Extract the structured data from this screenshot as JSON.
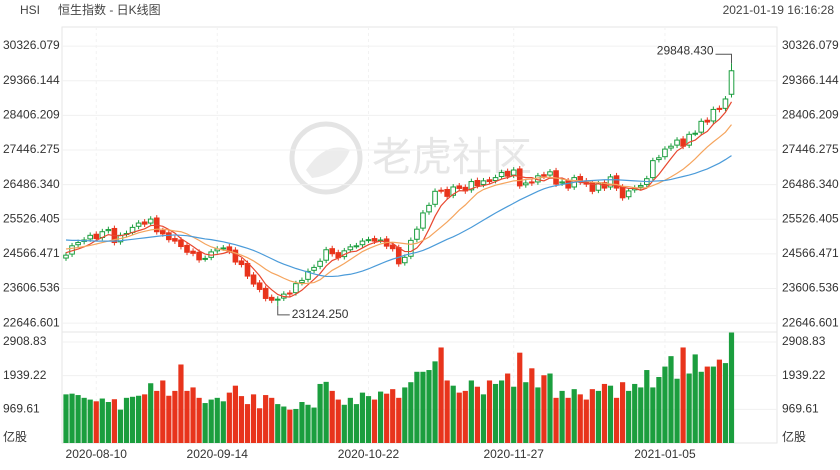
{
  "chart_data": {
    "type": "candlestick",
    "symbol": "HSI",
    "title": "恒生指数 - 日K线图",
    "timestamp": "2021-01-19 16:16:28",
    "watermark": "老虎社区",
    "categories": [
      null,
      null,
      null,
      null,
      null,
      "2020-08-10",
      null,
      null,
      null,
      null,
      null,
      null,
      null,
      null,
      null,
      null,
      null,
      null,
      null,
      null,
      null,
      null,
      null,
      null,
      null,
      "2020-09-14",
      null,
      null,
      null,
      null,
      null,
      null,
      null,
      null,
      null,
      null,
      null,
      null,
      null,
      null,
      null,
      null,
      null,
      null,
      null,
      null,
      null,
      null,
      null,
      null,
      "2020-10-22",
      null,
      null,
      null,
      null,
      null,
      null,
      null,
      null,
      null,
      null,
      null,
      null,
      null,
      null,
      null,
      null,
      null,
      null,
      null,
      null,
      null,
      null,
      null,
      "2020-11-27",
      null,
      null,
      null,
      null,
      null,
      null,
      null,
      null,
      null,
      null,
      null,
      null,
      null,
      null,
      null,
      null,
      null,
      null,
      null,
      null,
      null,
      null,
      null,
      null,
      "2021-01-05",
      null,
      null,
      null,
      null,
      null,
      null,
      null,
      null,
      null,
      null,
      null
    ],
    "open": [
      24450,
      24560,
      24820,
      24910,
      24980,
      25110,
      25020,
      25210,
      25270,
      24900,
      25110,
      25160,
      25330,
      25450,
      25420,
      25560,
      25210,
      25150,
      24990,
      24950,
      24800,
      24640,
      24610,
      24430,
      24470,
      24650,
      24730,
      24760,
      24670,
      24370,
      24300,
      23980,
      23760,
      23610,
      23360,
      23310,
      23340,
      23480,
      23490,
      23770,
      23860,
      24110,
      24220,
      24390,
      24710,
      24600,
      24490,
      24680,
      24790,
      24820,
      24950,
      24990,
      24950,
      24980,
      24810,
      24740,
      24320,
      24500,
      24970,
      25280,
      25730,
      25940,
      26330,
      26350,
      26190,
      26450,
      26410,
      26340,
      26600,
      26490,
      26620,
      26600,
      26710,
      26850,
      26750,
      26920,
      26480,
      26560,
      26560,
      26760,
      26750,
      26870,
      26530,
      26590,
      26420,
      26710,
      26590,
      26530,
      26330,
      26540,
      26420,
      26730,
      26420,
      26150,
      26340,
      26420,
      26490,
      26680,
      27180,
      27260,
      27500,
      27580,
      27750,
      27580,
      27910,
      27940,
      28270,
      28250,
      28600,
      28600,
      28990
    ],
    "high": [
      24610,
      24870,
      24960,
      25030,
      25160,
      25190,
      25260,
      25320,
      25350,
      25160,
      25210,
      25380,
      25500,
      25530,
      25610,
      25640,
      25290,
      25230,
      25070,
      25030,
      24880,
      24720,
      24690,
      24520,
      24700,
      24780,
      24810,
      24840,
      24750,
      24450,
      24380,
      24060,
      23840,
      23690,
      23440,
      23390,
      23530,
      23560,
      23820,
      23910,
      24160,
      24270,
      24440,
      24760,
      24790,
      24680,
      24730,
      24840,
      24870,
      25000,
      25040,
      25070,
      25030,
      25060,
      24890,
      24820,
      24550,
      25020,
      25330,
      25780,
      25990,
      26380,
      26410,
      26430,
      26500,
      26530,
      26490,
      26650,
      26680,
      26670,
      26700,
      26760,
      26900,
      26930,
      26970,
      27000,
      26610,
      26640,
      26810,
      26840,
      26920,
      26950,
      26640,
      26670,
      26760,
      26790,
      26670,
      26610,
      26590,
      26620,
      26780,
      26810,
      26500,
      26390,
      26470,
      26540,
      26730,
      27230,
      27310,
      27550,
      27630,
      27800,
      27830,
      27960,
      27990,
      28320,
      28350,
      28650,
      28680,
      28940,
      29848.43
    ],
    "low": [
      24370,
      24480,
      24740,
      24830,
      24900,
      24910,
      24940,
      25130,
      24800,
      24820,
      25030,
      25080,
      25250,
      25310,
      25340,
      25100,
      25040,
      24880,
      24840,
      24690,
      24530,
      24500,
      24320,
      24350,
      24390,
      24570,
      24650,
      24560,
      24260,
      24190,
      23870,
      23650,
      23500,
      23250,
      23200,
      23124.25,
      23260,
      23380,
      23410,
      23690,
      23780,
      24030,
      24140,
      24310,
      24490,
      24380,
      24410,
      24600,
      24710,
      24740,
      24870,
      24840,
      24870,
      24700,
      24630,
      24210,
      24240,
      24420,
      24890,
      25200,
      25650,
      25860,
      26240,
      26080,
      26110,
      26300,
      26230,
      26260,
      26380,
      26410,
      26490,
      26520,
      26630,
      26640,
      26670,
      26370,
      26400,
      26450,
      26480,
      26640,
      26670,
      26420,
      26450,
      26310,
      26340,
      26480,
      26420,
      26220,
      26250,
      26310,
      26340,
      26310,
      26040,
      26070,
      26260,
      26340,
      26410,
      26600,
      27100,
      27180,
      27420,
      27500,
      27470,
      27500,
      27830,
      27860,
      28140,
      28170,
      28490,
      28520,
      28900
    ],
    "close": [
      24530,
      24790,
      24880,
      24950,
      25080,
      24990,
      25180,
      25240,
      24880,
      25080,
      25130,
      25300,
      25420,
      25390,
      25530,
      25180,
      25120,
      24960,
      24920,
      24770,
      24610,
      24580,
      24400,
      24440,
      24620,
      24700,
      24730,
      24640,
      24340,
      24270,
      23950,
      23730,
      23580,
      23330,
      23280,
      23310,
      23450,
      23460,
      23740,
      23830,
      24080,
      24190,
      24360,
      24680,
      24570,
      24460,
      24650,
      24760,
      24790,
      24920,
      24960,
      24920,
      24950,
      24780,
      24710,
      24290,
      24470,
      24940,
      25250,
      25700,
      25910,
      26300,
      26320,
      26160,
      26420,
      26380,
      26310,
      26570,
      26460,
      26590,
      26570,
      26680,
      26820,
      26720,
      26890,
      26450,
      26530,
      26530,
      26730,
      26720,
      26840,
      26500,
      26560,
      26390,
      26680,
      26560,
      26500,
      26300,
      26510,
      26390,
      26700,
      26390,
      26120,
      26310,
      26390,
      26460,
      26650,
      27150,
      27230,
      27470,
      27550,
      27720,
      27550,
      27880,
      27910,
      28240,
      28220,
      28570,
      28570,
      28860,
      29642
    ],
    "volume": [
      1400,
      1420,
      1380,
      1300,
      1250,
      1200,
      1280,
      1180,
      1260,
      960,
      1300,
      1330,
      1360,
      1400,
      1720,
      1500,
      1800,
      1360,
      1500,
      2260,
      1500,
      1600,
      1300,
      1150,
      1250,
      1300,
      1200,
      1450,
      1650,
      1350,
      1120,
      1400,
      1000,
      1380,
      1300,
      1120,
      1050,
      960,
      980,
      1180,
      1100,
      1020,
      1700,
      1760,
      1500,
      1250,
      1100,
      1300,
      1120,
      1450,
      1350,
      1250,
      1480,
      1420,
      1550,
      1300,
      1600,
      1750,
      2050,
      2050,
      2100,
      2350,
      2750,
      1800,
      1650,
      1450,
      1500,
      1800,
      1620,
      1400,
      1800,
      1700,
      1800,
      2000,
      1620,
      2600,
      1750,
      2150,
      1600,
      1950,
      2000,
      1300,
      1500,
      1300,
      1550,
      1400,
      1250,
      1550,
      1500,
      1700,
      1650,
      1300,
      1750,
      1500,
      1700,
      1600,
      2100,
      1600,
      1900,
      2200,
      2500,
      1850,
      2750,
      2000,
      2550,
      2050,
      2200,
      2200,
      2400,
      2300,
      3180
    ],
    "up_color": "#1b9e3e",
    "down_color": "#e8341c",
    "ma_series": [
      {
        "color": "#e8472f",
        "values": [
          24600,
          24650,
          24700,
          24760,
          24840,
          24940,
          25020,
          25100,
          25070,
          25070,
          25100,
          25160,
          25210,
          25260,
          25350,
          25360,
          25330,
          25240,
          25140,
          24990,
          24880,
          24770,
          24650,
          24560,
          24530,
          24550,
          24580,
          24630,
          24560,
          24480,
          24330,
          24150,
          23960,
          23720,
          23570,
          23440,
          23380,
          23370,
          23450,
          23560,
          23710,
          23860,
          24020,
          24230,
          24380,
          24450,
          24550,
          24620,
          24640,
          24730,
          24820,
          24880,
          24920,
          24900,
          24860,
          24730,
          24630,
          24630,
          24730,
          24930,
          25250,
          25610,
          25900,
          26080,
          26220,
          26320,
          26310,
          26370,
          26430,
          26460,
          26500,
          26570,
          26640,
          26680,
          26740,
          26710,
          26680,
          26680,
          26620,
          26590,
          26670,
          26660,
          26670,
          26600,
          26590,
          26540,
          26540,
          26490,
          26510,
          26450,
          26480,
          26460,
          26420,
          26380,
          26380,
          26330,
          26390,
          26590,
          26770,
          26990,
          27210,
          27420,
          27530,
          27660,
          27720,
          27860,
          27960,
          28160,
          28300,
          28490,
          28780
        ]
      },
      {
        "color": "#f5a45d",
        "values": [
          24700,
          24720,
          24740,
          24770,
          24800,
          24840,
          24880,
          24920,
          24960,
          24990,
          25030,
          25090,
          25150,
          25190,
          25230,
          25250,
          25250,
          25230,
          25200,
          25180,
          25120,
          25030,
          24940,
          24840,
          24760,
          24710,
          24670,
          24640,
          24590,
          24530,
          24460,
          24370,
          24260,
          24140,
          24040,
          23970,
          23890,
          23820,
          23770,
          23740,
          23750,
          23770,
          23850,
          23980,
          24110,
          24200,
          24300,
          24410,
          24520,
          24630,
          24710,
          24780,
          24840,
          24880,
          24890,
          24870,
          24850,
          24830,
          24860,
          24940,
          25030,
          25170,
          25310,
          25450,
          25610,
          25780,
          25920,
          26090,
          26250,
          26350,
          26410,
          26470,
          26510,
          26550,
          26590,
          26600,
          26630,
          26640,
          26670,
          26690,
          26690,
          26670,
          26640,
          26610,
          26600,
          26590,
          26580,
          26550,
          26550,
          26520,
          26500,
          26490,
          26440,
          26430,
          26400,
          26390,
          26400,
          26460,
          26530,
          26610,
          26700,
          26800,
          26910,
          27050,
          27200,
          27370,
          27530,
          27670,
          27800,
          27940,
          28150
        ]
      },
      {
        "color": "#4b9bd9",
        "values": [
          24950,
          24940,
          24940,
          24930,
          24930,
          24920,
          24920,
          24920,
          24920,
          24930,
          24950,
          24970,
          24990,
          25010,
          25030,
          25050,
          25070,
          25080,
          25090,
          25080,
          25070,
          25040,
          25010,
          24980,
          24960,
          24930,
          24900,
          24860,
          24820,
          24770,
          24720,
          24660,
          24590,
          24510,
          24430,
          24350,
          24280,
          24220,
          24160,
          24110,
          24060,
          24010,
          23970,
          23940,
          23940,
          23950,
          23980,
          24000,
          24040,
          24090,
          24150,
          24220,
          24290,
          24360,
          24420,
          24470,
          24530,
          24570,
          24610,
          24660,
          24730,
          24810,
          24890,
          24970,
          25040,
          25120,
          25210,
          25300,
          25400,
          25500,
          25600,
          25700,
          25790,
          25880,
          25970,
          26060,
          26140,
          26220,
          26300,
          26370,
          26420,
          26460,
          26490,
          26520,
          26550,
          26570,
          26590,
          26600,
          26610,
          26620,
          26620,
          26620,
          26610,
          26600,
          26590,
          26580,
          26570,
          26580,
          26590,
          26600,
          26630,
          26670,
          26710,
          26750,
          26800,
          26860,
          26920,
          27000,
          27080,
          27180,
          27290
        ]
      }
    ],
    "ylim": [
      22400,
      30550
    ],
    "yticks": [
      30326.079,
      29366.144,
      28406.209,
      27446.275,
      {
        "value": 26486.34,
        "label": "26486.340"
      },
      25526.405,
      24566.471,
      23606.536,
      22646.601
    ],
    "volume_ylim": [
      0,
      3080
    ],
    "volume_yticks": [
      2908.83,
      1939.22,
      969.61
    ],
    "volume_unit": "亿股",
    "annotations": [
      {
        "value": 29848.43,
        "label": "29848.430"
      },
      {
        "value": 23124.25,
        "label": "23124.250"
      }
    ],
    "grid": true
  }
}
